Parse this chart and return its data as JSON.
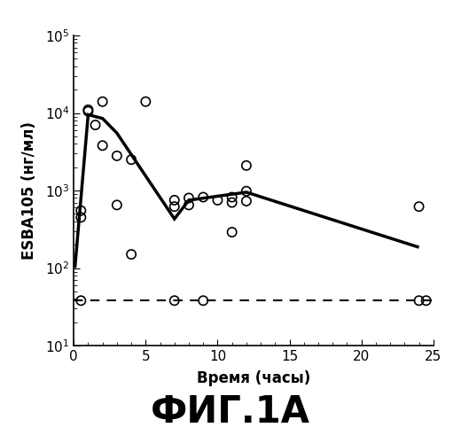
{
  "title": "ФИГ.1А",
  "xlabel": "Время (часы)",
  "ylabel": "ESBA105 (нг/мл)",
  "xlim": [
    0,
    25
  ],
  "ylim_log": [
    10,
    100000
  ],
  "solid_line_x": [
    0.08,
    1,
    2,
    3,
    7,
    8,
    12,
    24
  ],
  "solid_line_y": [
    100,
    9500,
    8500,
    5500,
    430,
    750,
    950,
    185
  ],
  "dashed_line_y": 38,
  "scatter_points": [
    [
      0.5,
      450
    ],
    [
      0.5,
      550
    ],
    [
      1,
      11000
    ],
    [
      1,
      10500
    ],
    [
      1.5,
      7000
    ],
    [
      2,
      14000
    ],
    [
      2,
      3800
    ],
    [
      3,
      2800
    ],
    [
      3,
      650
    ],
    [
      4,
      2500
    ],
    [
      4,
      150
    ],
    [
      5,
      14000
    ],
    [
      7,
      750
    ],
    [
      7,
      620
    ],
    [
      8,
      800
    ],
    [
      8,
      650
    ],
    [
      9,
      820
    ],
    [
      10,
      750
    ],
    [
      11,
      820
    ],
    [
      11,
      700
    ],
    [
      11,
      290
    ],
    [
      12,
      2100
    ],
    [
      12,
      980
    ],
    [
      12,
      730
    ],
    [
      24,
      620
    ]
  ],
  "dashed_scatter_points": [
    [
      0.5,
      38
    ],
    [
      7,
      38
    ],
    [
      9,
      38
    ],
    [
      24,
      38
    ],
    [
      24.5,
      38
    ]
  ],
  "xticks": [
    0,
    5,
    10,
    15,
    20,
    25
  ],
  "yticks_log": [
    10,
    100,
    1000,
    10000,
    100000
  ],
  "line_color": "#000000",
  "scatter_color": "#000000",
  "dashed_color": "#000000",
  "bg_color": "#ffffff",
  "title_fontsize": 30,
  "label_fontsize": 12,
  "tick_fontsize": 11
}
